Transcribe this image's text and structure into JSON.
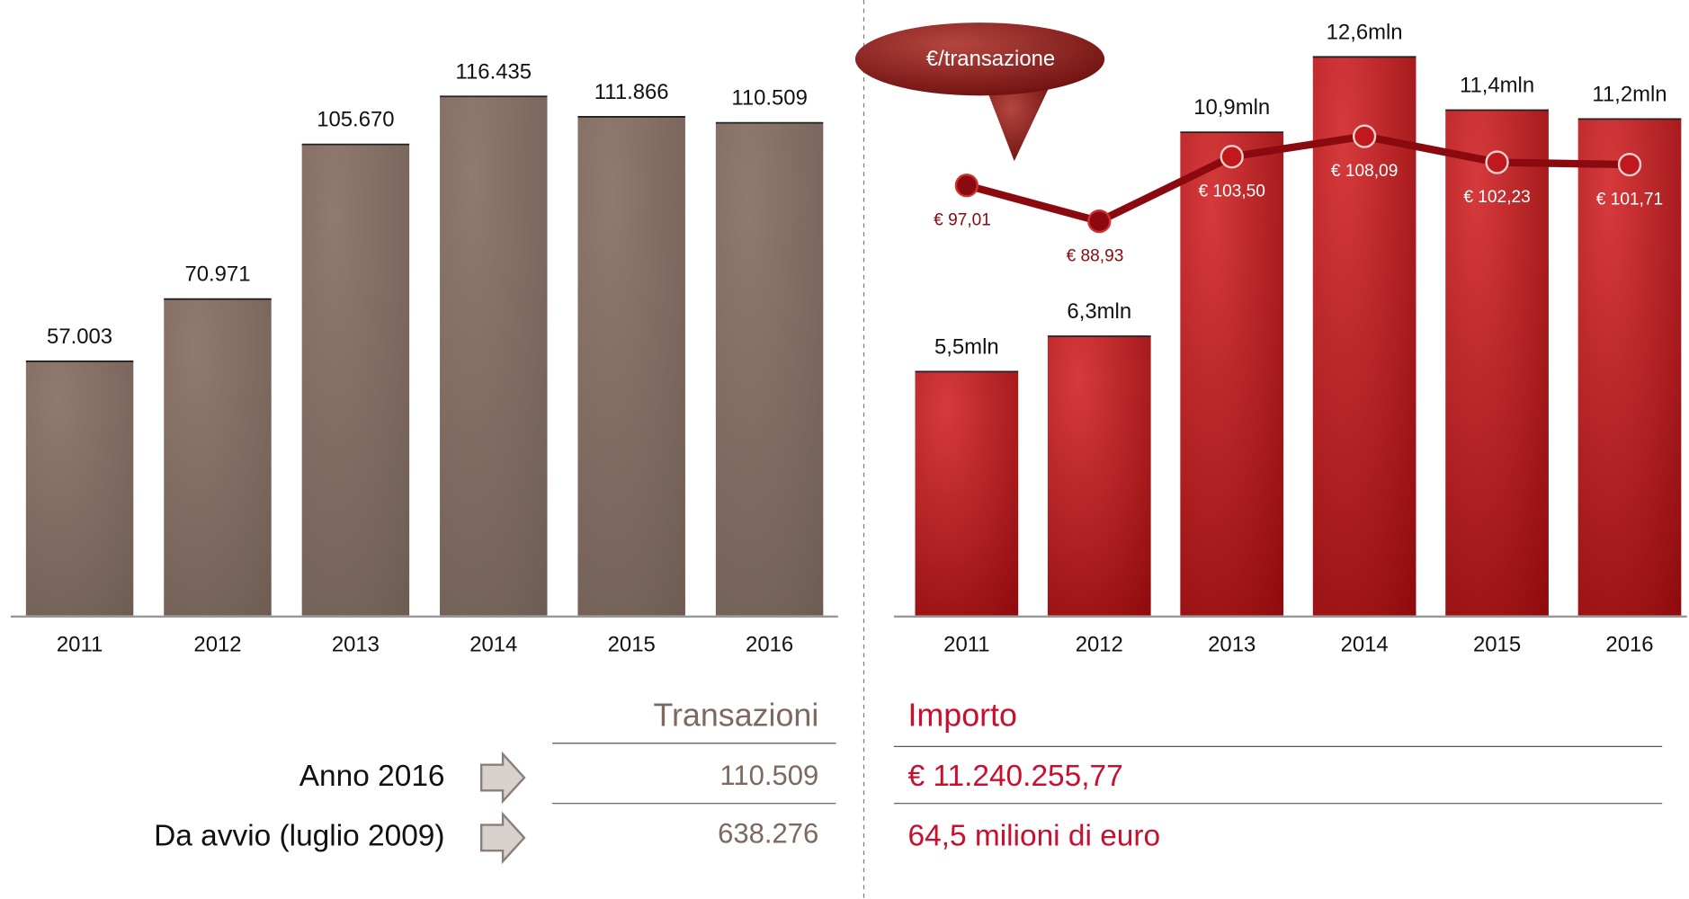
{
  "chart_data": [
    {
      "type": "bar",
      "categories": [
        "2011",
        "2012",
        "2013",
        "2014",
        "2015",
        "2016"
      ],
      "values": [
        57003,
        70971,
        105670,
        116435,
        111866,
        110509
      ],
      "value_labels": [
        "57.003",
        "70.971",
        "105.670",
        "116.435",
        "111.866",
        "110.509"
      ],
      "color": "#8a7468",
      "ylim": [
        0,
        120000
      ]
    },
    {
      "type": "combo",
      "categories": [
        "2011",
        "2012",
        "2013",
        "2014",
        "2015",
        "2016"
      ],
      "values": [
        5.5,
        6.3,
        10.9,
        12.6,
        11.4,
        11.2
      ],
      "value_labels": [
        "5,5mln",
        "6,3mln",
        "10,9mln",
        "12,6mln",
        "11,4mln",
        "11,2mln"
      ],
      "color": "#c0181c",
      "ylim": [
        0,
        13
      ],
      "line": {
        "name": "€/transazione",
        "color": "#8b0a0f",
        "axis": "y2",
        "values": [
          97.01,
          88.93,
          103.5,
          108.09,
          102.23,
          101.71
        ],
        "value_labels": [
          "€ 97,01",
          "€ 88,93",
          "€ 103,50",
          "€ 108,09",
          "€ 102,23",
          "€ 101,71"
        ]
      },
      "y2lim": [
        0,
        130
      ]
    }
  ],
  "table": {
    "headers": [
      "Transazioni",
      "Importo"
    ],
    "rows": [
      [
        "Anno 2016",
        "110.509",
        "€ 11.240.255,77"
      ],
      [
        "Da avvio (luglio 2009)",
        "638.276",
        "64,5 milioni di euro"
      ]
    ]
  }
}
